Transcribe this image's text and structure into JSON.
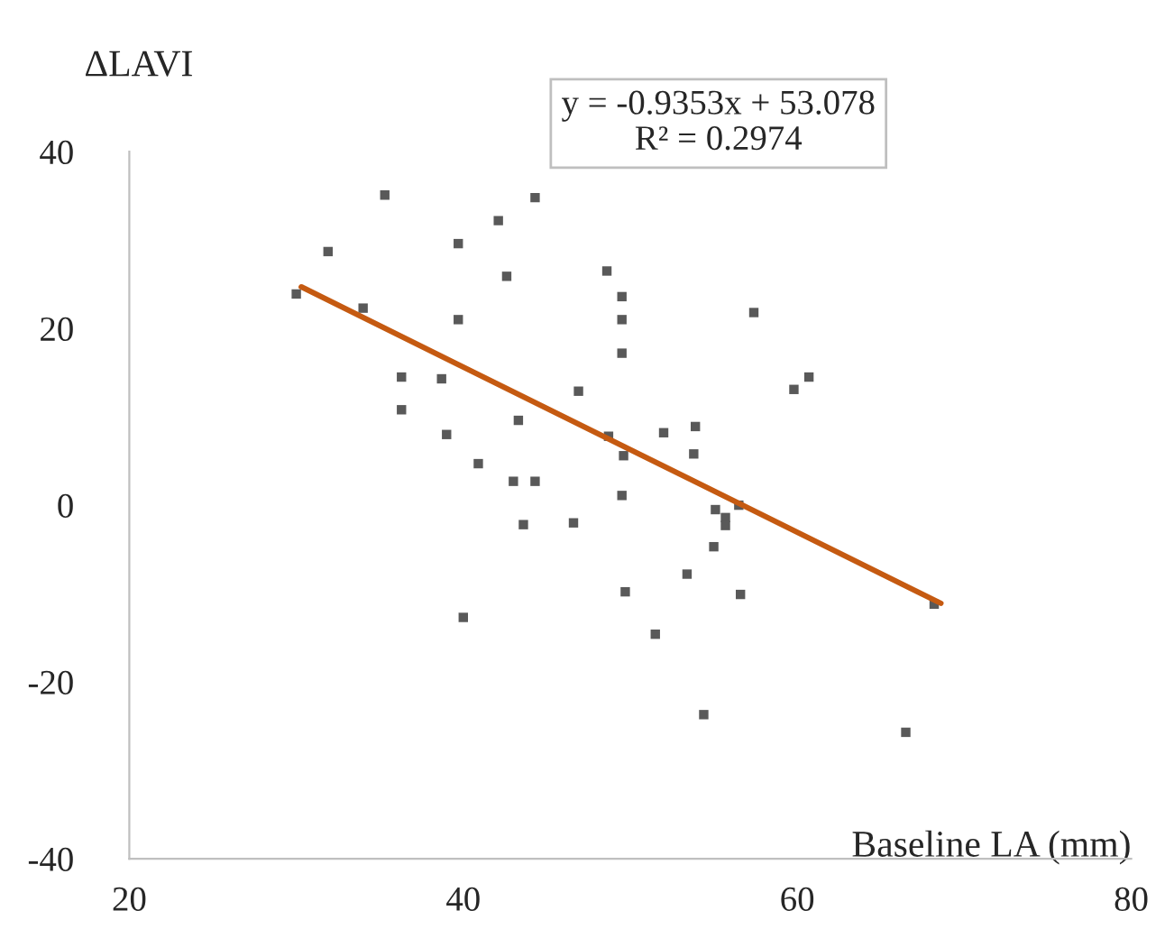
{
  "chart_data": {
    "type": "scatter",
    "xlabel": "Baseline LA (mm)",
    "ylabel": "ΔLAVI",
    "annotations": [
      "y = -0.9353x + 53.078",
      "R² = 0.2974"
    ],
    "xlim": [
      20,
      80
    ],
    "ylim": [
      -40,
      40
    ],
    "xticks": [
      20,
      40,
      60,
      80
    ],
    "yticks": [
      -40,
      -20,
      0,
      20,
      40
    ],
    "grid": false,
    "legend": false,
    "series": [
      {
        "marker": "square",
        "color": "#595959",
        "x": [
          30.0,
          31.9,
          34.0,
          35.3,
          36.3,
          36.3,
          38.7,
          39.0,
          39.7,
          39.7,
          40.0,
          40.9,
          42.1,
          42.6,
          43.0,
          43.3,
          43.6,
          44.3,
          44.3,
          46.6,
          46.9,
          48.6,
          48.7,
          49.5,
          49.5,
          49.5,
          49.6,
          49.5,
          52.0,
          53.9,
          53.8,
          55.1,
          55.7,
          55.7,
          56.5,
          55.0,
          53.4,
          49.7,
          56.6,
          51.5,
          57.4,
          59.8,
          60.7,
          68.2,
          54.4,
          66.5
        ],
        "values": [
          23.9,
          28.7,
          22.3,
          35.1,
          14.5,
          10.8,
          14.3,
          8.0,
          29.6,
          21.0,
          -12.7,
          4.7,
          32.2,
          25.9,
          2.7,
          9.6,
          -2.2,
          34.8,
          2.7,
          -2.0,
          12.9,
          26.5,
          7.8,
          23.6,
          21.0,
          17.2,
          5.6,
          1.1,
          8.2,
          8.9,
          5.8,
          -0.5,
          -1.4,
          -2.3,
          0.0,
          -4.7,
          -7.8,
          -9.8,
          -10.1,
          -14.6,
          21.8,
          13.1,
          14.5,
          -11.2,
          -23.7,
          -25.7
        ]
      },
      {
        "type": "line",
        "color": "#c55a11",
        "x": [
          30.3,
          68.6
        ],
        "values": [
          24.7,
          -11.1
        ]
      }
    ]
  }
}
